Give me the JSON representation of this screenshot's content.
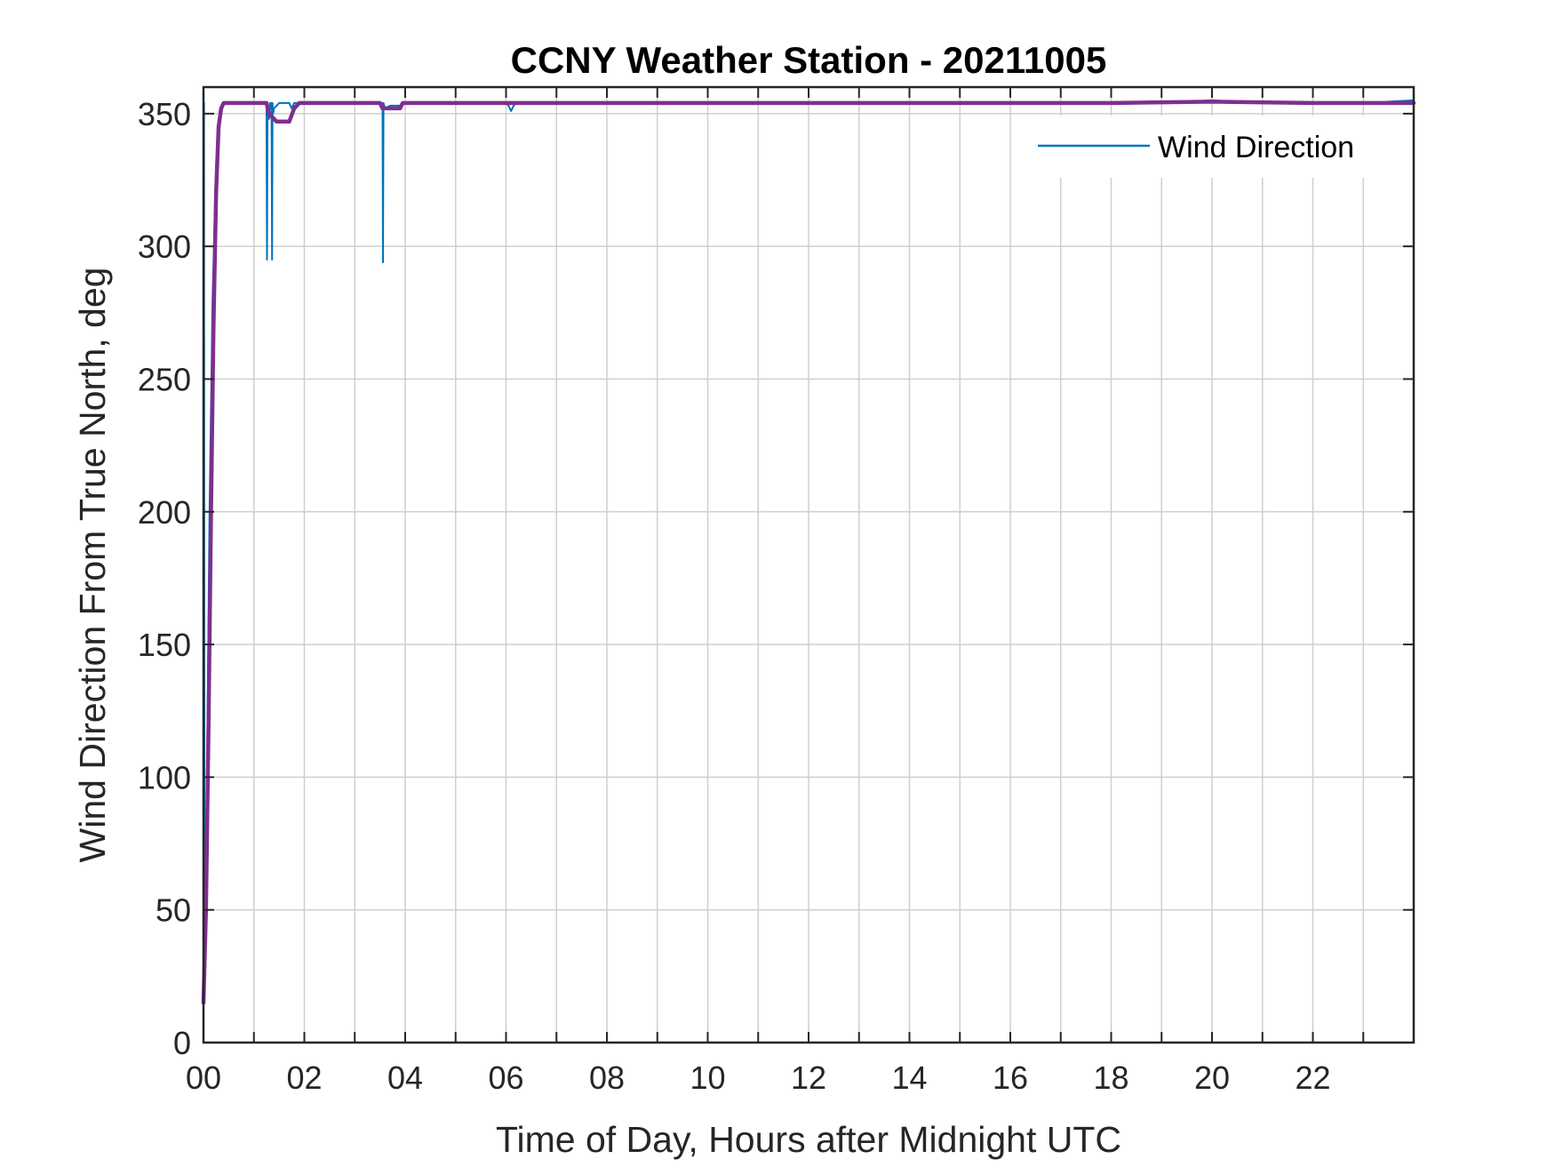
{
  "chart_data": {
    "type": "line",
    "title": "CCNY Weather Station - 20211005",
    "xlabel": "Time of Day, Hours after Midnight UTC",
    "ylabel": "Wind Direction From True North, deg",
    "xlim": [
      0,
      24
    ],
    "ylim": [
      0,
      360
    ],
    "x_ticks": [
      0,
      2,
      4,
      6,
      8,
      10,
      12,
      14,
      16,
      18,
      20,
      22
    ],
    "x_tick_labels": [
      "00",
      "02",
      "04",
      "06",
      "08",
      "10",
      "12",
      "14",
      "16",
      "18",
      "20",
      "22"
    ],
    "x_minor_ticks": [
      1,
      3,
      5,
      7,
      9,
      11,
      13,
      15,
      17,
      19,
      21,
      23
    ],
    "y_ticks": [
      0,
      50,
      100,
      150,
      200,
      250,
      300,
      350
    ],
    "y_tick_labels": [
      "0",
      "50",
      "100",
      "150",
      "200",
      "250",
      "300",
      "350"
    ],
    "grid": true,
    "legend_position": "top-right",
    "series": [
      {
        "name": "Wind Direction",
        "color": "#0072BD",
        "x": [
          0,
          0.01,
          0.02,
          0.05,
          0.08,
          0.12,
          0.18,
          0.25,
          0.3,
          0.35,
          0.4,
          0.5,
          1.0,
          1.2,
          1.25,
          1.26,
          1.27,
          1.28,
          1.3,
          1.32,
          1.35,
          1.36,
          1.37,
          1.38,
          1.4,
          1.5,
          1.7,
          1.75,
          1.8,
          2.0,
          3.0,
          3.5,
          3.55,
          3.56,
          3.57,
          3.6,
          3.7,
          3.9,
          4.0,
          5.0,
          6.0,
          6.05,
          6.1,
          6.15,
          6.2,
          6.4,
          8.0,
          10.0,
          12.0,
          14.0,
          16.0,
          18.0,
          19.0,
          20.0,
          21.0,
          22.0,
          23.0,
          24.0
        ],
        "y": [
          354,
          354,
          60,
          58,
          120,
          200,
          280,
          330,
          345,
          350,
          354,
          354,
          354,
          354,
          354,
          295,
          354,
          350,
          348,
          354,
          354,
          295,
          354,
          350,
          352,
          354,
          354,
          352,
          354,
          354,
          354,
          354,
          354,
          294,
          354,
          352,
          353,
          353,
          354,
          354,
          354,
          353,
          351,
          353,
          354,
          354,
          354,
          354,
          354,
          354,
          354,
          354,
          354,
          355,
          354,
          354,
          354,
          355
        ]
      },
      {
        "name": "",
        "color": "#7E2F8E",
        "x": [
          0,
          0.05,
          0.1,
          0.15,
          0.2,
          0.25,
          0.3,
          0.35,
          0.4,
          0.5,
          1.0,
          1.2,
          1.25,
          1.3,
          1.45,
          1.6,
          1.7,
          1.8,
          1.9,
          2.0,
          2.5,
          3.0,
          3.5,
          3.55,
          3.6,
          3.9,
          3.95,
          4.0,
          6.0,
          8.0,
          10.0,
          12.0,
          14.0,
          16.0,
          18.0,
          20.0,
          22.0,
          24.0
        ],
        "y": [
          15,
          50,
          120,
          200,
          270,
          320,
          345,
          352,
          354,
          354,
          354,
          354,
          354,
          350,
          347,
          347,
          347,
          352,
          354,
          354,
          354,
          354,
          354,
          352,
          352,
          352,
          354,
          354,
          354,
          354,
          354,
          354,
          354,
          354,
          354,
          354.5,
          354,
          354
        ]
      }
    ]
  }
}
